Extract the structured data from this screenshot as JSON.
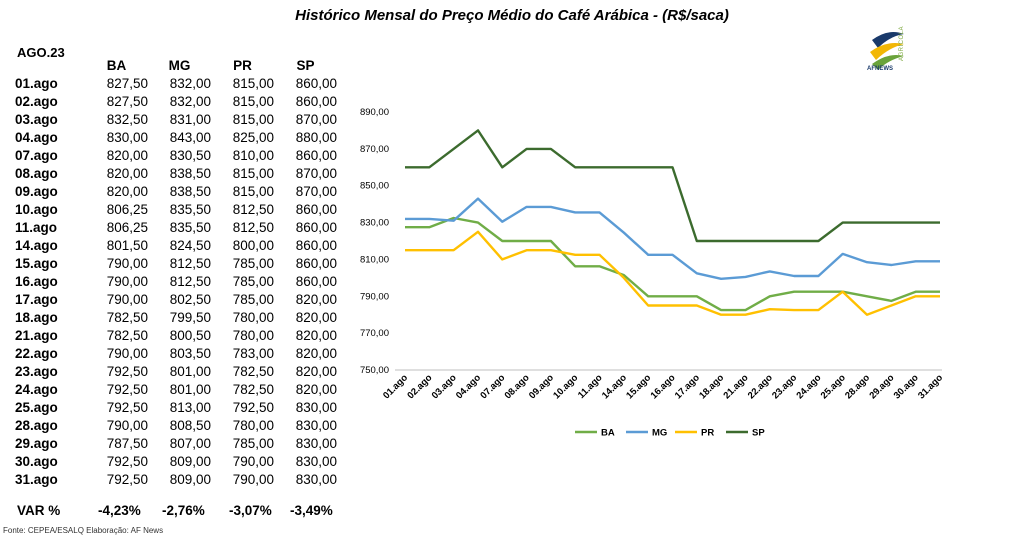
{
  "title": "Histórico Mensal do Preço Médio do Café Arábica - (R$/saca)",
  "period": "AGO.23",
  "columns": [
    "BA",
    "MG",
    "PR",
    "SP"
  ],
  "rows": [
    {
      "date": "01.ago",
      "BA": "827,50",
      "MG": "832,00",
      "PR": "815,00",
      "SP": "860,00"
    },
    {
      "date": "02.ago",
      "BA": "827,50",
      "MG": "832,00",
      "PR": "815,00",
      "SP": "860,00"
    },
    {
      "date": "03.ago",
      "BA": "832,50",
      "MG": "831,00",
      "PR": "815,00",
      "SP": "870,00"
    },
    {
      "date": "04.ago",
      "BA": "830,00",
      "MG": "843,00",
      "PR": "825,00",
      "SP": "880,00"
    },
    {
      "date": "07.ago",
      "BA": "820,00",
      "MG": "830,50",
      "PR": "810,00",
      "SP": "860,00"
    },
    {
      "date": "08.ago",
      "BA": "820,00",
      "MG": "838,50",
      "PR": "815,00",
      "SP": "870,00"
    },
    {
      "date": "09.ago",
      "BA": "820,00",
      "MG": "838,50",
      "PR": "815,00",
      "SP": "870,00"
    },
    {
      "date": "10.ago",
      "BA": "806,25",
      "MG": "835,50",
      "PR": "812,50",
      "SP": "860,00"
    },
    {
      "date": "11.ago",
      "BA": "806,25",
      "MG": "835,50",
      "PR": "812,50",
      "SP": "860,00"
    },
    {
      "date": "14.ago",
      "BA": "801,50",
      "MG": "824,50",
      "PR": "800,00",
      "SP": "860,00"
    },
    {
      "date": "15.ago",
      "BA": "790,00",
      "MG": "812,50",
      "PR": "785,00",
      "SP": "860,00"
    },
    {
      "date": "16.ago",
      "BA": "790,00",
      "MG": "812,50",
      "PR": "785,00",
      "SP": "860,00"
    },
    {
      "date": "17.ago",
      "BA": "790,00",
      "MG": "802,50",
      "PR": "785,00",
      "SP": "820,00"
    },
    {
      "date": "18.ago",
      "BA": "782,50",
      "MG": "799,50",
      "PR": "780,00",
      "SP": "820,00"
    },
    {
      "date": "21.ago",
      "BA": "782,50",
      "MG": "800,50",
      "PR": "780,00",
      "SP": "820,00"
    },
    {
      "date": "22.ago",
      "BA": "790,00",
      "MG": "803,50",
      "PR": "783,00",
      "SP": "820,00"
    },
    {
      "date": "23.ago",
      "BA": "792,50",
      "MG": "801,00",
      "PR": "782,50",
      "SP": "820,00"
    },
    {
      "date": "24.ago",
      "BA": "792,50",
      "MG": "801,00",
      "PR": "782,50",
      "SP": "820,00"
    },
    {
      "date": "25.ago",
      "BA": "792,50",
      "MG": "813,00",
      "PR": "792,50",
      "SP": "830,00"
    },
    {
      "date": "28.ago",
      "BA": "790,00",
      "MG": "808,50",
      "PR": "780,00",
      "SP": "830,00"
    },
    {
      "date": "29.ago",
      "BA": "787,50",
      "MG": "807,00",
      "PR": "785,00",
      "SP": "830,00"
    },
    {
      "date": "30.ago",
      "BA": "792,50",
      "MG": "809,00",
      "PR": "790,00",
      "SP": "830,00"
    },
    {
      "date": "31.ago",
      "BA": "792,50",
      "MG": "809,00",
      "PR": "790,00",
      "SP": "830,00"
    }
  ],
  "var": {
    "label": "VAR %",
    "BA": "-4,23%",
    "MG": "-2,76%",
    "PR": "-3,07%",
    "SP": "-3,49%"
  },
  "footer": "Fonte: CEPEA/ESALQ    Elaboração: AF News",
  "logo": {
    "icon": "af-news-leaf-logo",
    "name": "AFNEWS",
    "sub": "AGRÍCOLA"
  },
  "chart_data": {
    "type": "line",
    "title": "",
    "x": [
      "01.ago",
      "02.ago",
      "03.ago",
      "04.ago",
      "07.ago",
      "08.ago",
      "09.ago",
      "10.ago",
      "11.ago",
      "14.ago",
      "15.ago",
      "16.ago",
      "17.ago",
      "18.ago",
      "21.ago",
      "22.ago",
      "23.ago",
      "24.ago",
      "25.ago",
      "28.ago",
      "29.ago",
      "30.ago",
      "31.ago"
    ],
    "series": [
      {
        "name": "BA",
        "color": "#70ad47",
        "values": [
          827.5,
          827.5,
          832.5,
          830,
          820,
          820,
          820,
          806.25,
          806.25,
          801.5,
          790,
          790,
          790,
          782.5,
          782.5,
          790,
          792.5,
          792.5,
          792.5,
          790,
          787.5,
          792.5,
          792.5
        ]
      },
      {
        "name": "MG",
        "color": "#5b9bd5",
        "values": [
          832,
          832,
          831,
          843,
          830.5,
          838.5,
          838.5,
          835.5,
          835.5,
          824.5,
          812.5,
          812.5,
          802.5,
          799.5,
          800.5,
          803.5,
          801,
          801,
          813,
          808.5,
          807,
          809,
          809
        ]
      },
      {
        "name": "PR",
        "color": "#ffc000",
        "values": [
          815,
          815,
          815,
          825,
          810,
          815,
          815,
          812.5,
          812.5,
          800,
          785,
          785,
          785,
          780,
          780,
          783,
          782.5,
          782.5,
          792.5,
          780,
          785,
          790,
          790
        ]
      },
      {
        "name": "SP",
        "color": "#3c6b2e",
        "values": [
          860,
          860,
          870,
          880,
          860,
          870,
          870,
          860,
          860,
          860,
          860,
          860,
          820,
          820,
          820,
          820,
          820,
          820,
          830,
          830,
          830,
          830,
          830
        ]
      }
    ],
    "yticks": [
      "750,00",
      "770,00",
      "790,00",
      "810,00",
      "830,00",
      "850,00",
      "870,00",
      "890,00"
    ],
    "ylim": [
      750,
      890
    ],
    "grid": false,
    "legend": "bottom"
  }
}
